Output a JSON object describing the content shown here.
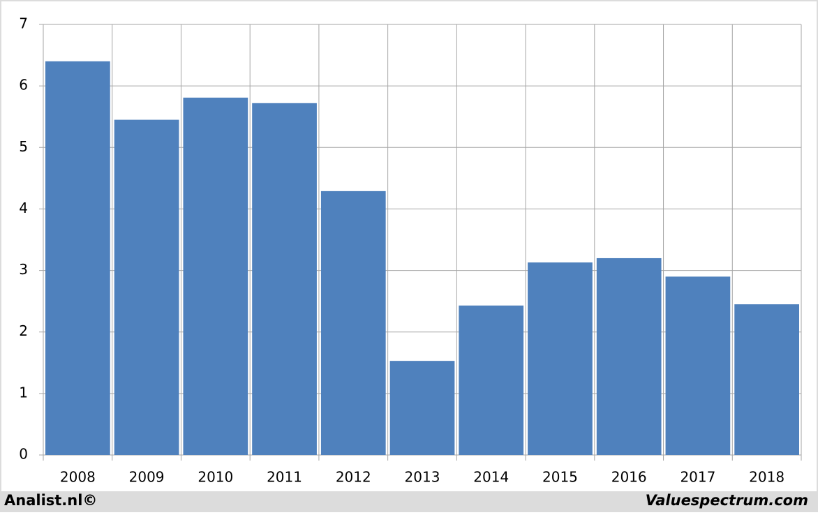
{
  "chart_data": {
    "type": "bar",
    "categories": [
      "2008",
      "2009",
      "2010",
      "2011",
      "2012",
      "2013",
      "2014",
      "2015",
      "2016",
      "2017",
      "2018"
    ],
    "values": [
      6.4,
      5.45,
      5.81,
      5.72,
      4.29,
      1.53,
      2.43,
      3.13,
      3.2,
      2.9,
      2.45
    ],
    "color": "#4f81bd",
    "ylim": [
      0,
      7
    ],
    "yticks": [
      0,
      1,
      2,
      3,
      4,
      5,
      6,
      7
    ],
    "grid": true
  },
  "footer_left": "Analist.nl©",
  "footer_right": "Valuespectrum.com"
}
